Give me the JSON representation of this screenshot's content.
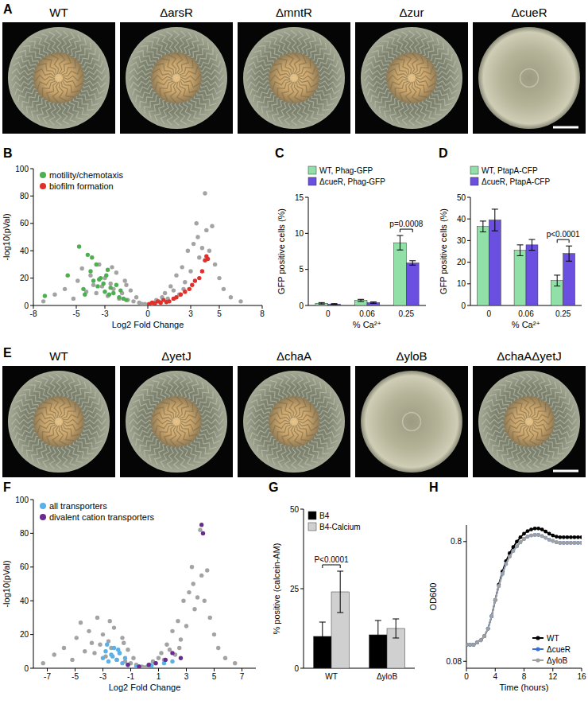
{
  "images": [
    {
      "panel": "A",
      "strains": [
        "WT",
        "ΔarsR",
        "ΔmntR",
        "Δzur",
        "ΔcueR"
      ]
    },
    {
      "panel": "E",
      "strains": [
        "WT",
        "ΔyetJ",
        "ΔchaA",
        "ΔyloB",
        "ΔchaAΔyetJ"
      ]
    }
  ],
  "chart_data": [
    {
      "panel": "B",
      "type": "scatter",
      "x_label": "Log2 Fold Change",
      "y_label": "-log10(pVal)",
      "xlim": [
        -8,
        8
      ],
      "ylim": [
        0,
        100
      ],
      "xticks": [
        -8,
        -5,
        -3,
        0,
        3,
        5,
        8
      ],
      "yticks": [
        0,
        20,
        40,
        60,
        80,
        100
      ],
      "legend": "top-left",
      "series": [
        {
          "color": "#a3a3a3",
          "x": [
            -7.3,
            -6.5,
            -5.8,
            -5.2,
            -4.9,
            -4.6,
            -4.3,
            -4.0,
            -3.8,
            -3.6,
            -3.4,
            -3.2,
            -3.0,
            -2.8,
            -2.6,
            -2.4,
            -2.2,
            -2.0,
            -1.8,
            -1.6,
            -1.4,
            -1.2,
            -1.0,
            -0.8,
            -0.6,
            -0.4,
            -0.2,
            0,
            0.2,
            0.4,
            0.6,
            0.8,
            1.0,
            1.2,
            1.4,
            1.6,
            1.8,
            2.0,
            2.2,
            2.4,
            2.6,
            2.8,
            3.0,
            3.2,
            3.4,
            3.6,
            3.8,
            4.0,
            4.1,
            4.3,
            4.5,
            4.7,
            5.0,
            5.3,
            5.8,
            6.5,
            2.5,
            3.5,
            -2.5,
            -1.5
          ],
          "values": [
            3,
            8,
            12,
            5,
            18,
            27,
            10,
            22,
            15,
            9,
            30,
            14,
            20,
            7,
            16,
            12,
            24,
            5,
            9,
            18,
            4,
            11,
            3,
            6,
            2,
            1,
            1,
            0.5,
            1,
            2,
            4,
            3,
            6,
            9,
            5,
            14,
            11,
            22,
            8,
            28,
            17,
            40,
            25,
            45,
            60,
            35,
            42,
            82,
            55,
            40,
            58,
            30,
            20,
            12,
            6,
            3,
            12,
            50,
            28,
            15
          ]
        },
        {
          "name": "motility/chemotaxis",
          "color": "#4caf50",
          "x": [
            -7.2,
            -5.6,
            -4.8,
            -4.5,
            -4.2,
            -4.0,
            -3.8,
            -3.6,
            -3.5,
            -3.3,
            -3.1,
            -3.0,
            -2.9,
            -2.7,
            -2.6,
            -2.4,
            -2.2,
            -2.0,
            -1.9,
            -1.7,
            -1.5,
            -3.9,
            -4.4,
            -2.8,
            -3.4
          ],
          "values": [
            7,
            22,
            43,
            12,
            37,
            25,
            18,
            30,
            14,
            20,
            16,
            10,
            22,
            8,
            13,
            9,
            15,
            6,
            11,
            5,
            4,
            35,
            8,
            26,
            19
          ]
        },
        {
          "name": "biofilm formation",
          "color": "#e0302a",
          "x": [
            0.1,
            0.3,
            0.5,
            0.7,
            0.9,
            1.1,
            1.3,
            1.5,
            1.8,
            2.0,
            2.3,
            2.6,
            2.9,
            3.1,
            3.3,
            3.6,
            3.8,
            4.0,
            4.1,
            4.2
          ],
          "values": [
            1,
            2,
            1.5,
            3,
            2,
            4,
            2.5,
            3,
            5,
            6,
            8,
            10,
            12,
            15,
            18,
            20,
            25,
            33,
            36,
            34
          ]
        }
      ]
    },
    {
      "panel": "C",
      "type": "bar",
      "x_label": "% Ca²⁺",
      "y_label": "GFP positive cells (%)",
      "categories": [
        "0",
        "0.06",
        "0.25"
      ],
      "ylim": [
        0,
        15
      ],
      "yticks": [
        0,
        5,
        10,
        15
      ],
      "legend": "top",
      "series": [
        {
          "name": "WT, Phag-GFP",
          "color": "#90e0a8",
          "values": [
            0.3,
            0.7,
            8.7
          ],
          "errors": [
            0.1,
            0.15,
            1.0
          ]
        },
        {
          "name": "ΔcueR, Phag-GFP",
          "color": "#6a4fe0",
          "values": [
            0.2,
            0.4,
            5.9
          ],
          "errors": [
            0.05,
            0.1,
            0.3
          ]
        }
      ],
      "annotations": [
        {
          "text": "p=0.0008",
          "category": "0.25"
        }
      ]
    },
    {
      "panel": "D",
      "type": "bar",
      "x_label": "% Ca²⁺",
      "y_label": "GFP positive cells (%)",
      "categories": [
        "0",
        "0.06",
        "0.25"
      ],
      "ylim": [
        0,
        50
      ],
      "yticks": [
        0,
        10,
        20,
        30,
        40,
        50
      ],
      "legend": "top",
      "series": [
        {
          "name": "WT, PtapA-CFP",
          "color": "#90e0a8",
          "values": [
            36.5,
            25.5,
            11.5
          ],
          "errors": [
            2.5,
            2.5,
            2.5
          ]
        },
        {
          "name": "ΔcueR, PtapA-CFP",
          "color": "#6a4fe0",
          "values": [
            39.5,
            28,
            24
          ],
          "errors": [
            5,
            2.5,
            3.5
          ]
        }
      ],
      "annotations": [
        {
          "text": "p<0.0001",
          "category": "0.25"
        }
      ]
    },
    {
      "panel": "F",
      "type": "scatter",
      "x_label": "Log2 Fold Change",
      "y_label": "-log10(pVal)",
      "xlim": [
        -8,
        8
      ],
      "ylim": [
        0,
        100
      ],
      "xticks": [
        -7,
        -5,
        -3,
        -1,
        1,
        3,
        5,
        7
      ],
      "yticks": [
        0,
        20,
        40,
        60,
        80,
        100
      ],
      "legend": "top-left",
      "series": [
        {
          "color": "#a3a3a3",
          "x": [
            -7.3,
            -6.5,
            -5.8,
            -5.2,
            -4.9,
            -4.6,
            -4.3,
            -4.0,
            -3.8,
            -3.6,
            -3.4,
            -3.2,
            -3.0,
            -2.8,
            -2.6,
            -2.4,
            -2.2,
            -2.0,
            -1.8,
            -1.6,
            -1.4,
            -1.2,
            -1.0,
            -0.8,
            -0.6,
            -0.4,
            -0.2,
            0,
            0.2,
            0.4,
            0.6,
            0.8,
            1.0,
            1.2,
            1.4,
            1.6,
            1.8,
            2.0,
            2.2,
            2.4,
            2.6,
            2.8,
            3.0,
            3.2,
            3.4,
            3.6,
            3.8,
            4.0,
            4.1,
            4.3,
            4.5,
            4.7,
            5.0,
            5.3,
            5.8,
            6.5,
            2.5,
            3.5,
            -2.5,
            -1.5
          ],
          "values": [
            3,
            8,
            12,
            5,
            18,
            27,
            10,
            22,
            15,
            9,
            30,
            14,
            20,
            7,
            16,
            12,
            24,
            5,
            9,
            18,
            4,
            11,
            3,
            6,
            2,
            1,
            1,
            0.5,
            1,
            2,
            4,
            3,
            6,
            9,
            5,
            14,
            11,
            22,
            8,
            28,
            17,
            40,
            25,
            45,
            60,
            35,
            42,
            82,
            55,
            40,
            58,
            30,
            20,
            12,
            6,
            3,
            12,
            50,
            28,
            15
          ]
        },
        {
          "name": "all transporters",
          "color": "#5ab0e8",
          "x": [
            -3.0,
            -2.8,
            -2.6,
            -2.4,
            -2.2,
            -2.0,
            -1.8,
            -1.6,
            -1.4,
            -1.2,
            -2.7,
            -2.3,
            -1.9,
            -0.6,
            0.5,
            1.4,
            2.0
          ],
          "values": [
            6,
            10,
            4,
            8,
            12,
            5,
            9,
            3,
            6,
            2,
            14,
            7,
            11,
            1,
            1.5,
            3,
            4
          ]
        },
        {
          "name": "divalent cation transporters",
          "color": "#6b2a90",
          "x": [
            -1.2,
            -0.4,
            0.3,
            0.8,
            1.5,
            2.0,
            2.6,
            4.1,
            4.2
          ],
          "values": [
            2,
            1,
            2,
            3,
            5,
            9,
            6,
            85,
            80
          ]
        }
      ]
    },
    {
      "panel": "G",
      "type": "bar",
      "y_label": "% positive (calcein-AM)",
      "categories": [
        "WT",
        "ΔyloB"
      ],
      "ylim": [
        0,
        50
      ],
      "yticks": [
        0,
        25,
        50
      ],
      "legend": "top-left",
      "series": [
        {
          "name": "B4",
          "color": "#000000",
          "values": [
            10,
            10.5
          ],
          "errors": [
            4.5,
            4.5
          ]
        },
        {
          "name": "B4-Calcium",
          "color": "#d0d0d0",
          "values": [
            24,
            12.5
          ],
          "errors": [
            6.5,
            3
          ]
        }
      ],
      "annotations": [
        {
          "text": "P<0.0001",
          "category": "WT"
        }
      ]
    },
    {
      "panel": "H",
      "type": "line",
      "x_label": "Time (hours)",
      "y_label": "OD600",
      "log": "y",
      "marker": "circle",
      "legend": "bottom-right",
      "xlim": [
        0,
        16
      ],
      "xticks": [
        0,
        4,
        8,
        12,
        16
      ],
      "ylim": [
        0.07,
        1.1
      ],
      "yticks": [
        0.08,
        0.8
      ],
      "x": [
        0,
        0.5,
        1,
        1.5,
        2,
        2.5,
        3,
        3.5,
        4,
        4.5,
        5,
        5.5,
        6,
        6.5,
        7,
        7.5,
        8,
        8.5,
        9,
        9.5,
        10,
        10.5,
        11,
        11.5,
        12,
        12.5,
        13,
        13.5,
        14,
        14.5,
        15,
        15.5,
        16
      ],
      "series": [
        {
          "name": "WT",
          "color": "#000000",
          "values": [
            0.11,
            0.11,
            0.11,
            0.115,
            0.12,
            0.13,
            0.15,
            0.19,
            0.26,
            0.35,
            0.45,
            0.55,
            0.64,
            0.72,
            0.8,
            0.87,
            0.93,
            0.98,
            1.01,
            1.03,
            1.03,
            1.01,
            0.97,
            0.93,
            0.9,
            0.88,
            0.87,
            0.87,
            0.87,
            0.87,
            0.87,
            0.87,
            0.87
          ]
        },
        {
          "name": "ΔcueR",
          "color": "#3a6fd8",
          "values": [
            0.11,
            0.11,
            0.11,
            0.115,
            0.12,
            0.13,
            0.15,
            0.19,
            0.26,
            0.34,
            0.43,
            0.52,
            0.6,
            0.67,
            0.73,
            0.79,
            0.84,
            0.88,
            0.9,
            0.91,
            0.91,
            0.89,
            0.86,
            0.83,
            0.81,
            0.79,
            0.78,
            0.78,
            0.78,
            0.78,
            0.78,
            0.78,
            0.78
          ]
        },
        {
          "name": "ΔyloB",
          "color": "#a0a0a0",
          "values": [
            0.11,
            0.11,
            0.11,
            0.115,
            0.12,
            0.13,
            0.15,
            0.19,
            0.26,
            0.34,
            0.43,
            0.52,
            0.6,
            0.67,
            0.73,
            0.79,
            0.84,
            0.88,
            0.9,
            0.91,
            0.91,
            0.89,
            0.86,
            0.83,
            0.81,
            0.79,
            0.78,
            0.78,
            0.78,
            0.78,
            0.78,
            0.78,
            0.78
          ]
        }
      ]
    }
  ]
}
